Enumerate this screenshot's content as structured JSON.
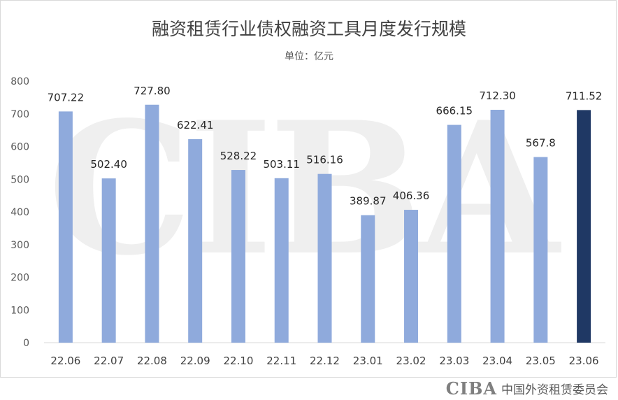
{
  "chart_data": {
    "type": "bar",
    "title": "融资租赁行业债权融资工具月度发行规模",
    "subtitle": "单位：亿元",
    "categories": [
      "22.06",
      "22.07",
      "22.08",
      "22.09",
      "22.10",
      "22.11",
      "22.12",
      "23.01",
      "23.02",
      "23.03",
      "23.04",
      "23.05",
      "23.06"
    ],
    "values": [
      707.22,
      502.4,
      727.8,
      622.41,
      528.22,
      503.11,
      516.16,
      389.87,
      406.36,
      666.15,
      712.3,
      567.8,
      711.52
    ],
    "value_labels": [
      "707.22",
      "502.40",
      "727.80",
      "622.41",
      "528.22",
      "503.11",
      "516.16",
      "389.87",
      "406.36",
      "666.15",
      "712.30",
      "567.8",
      "711.52"
    ],
    "ylim": [
      0,
      800
    ],
    "yticks": [
      0,
      100,
      200,
      300,
      400,
      500,
      600,
      700,
      800
    ],
    "grid": false,
    "colors": {
      "bar": "#8faadc",
      "highlight": "#1f3864"
    },
    "highlight_index": 12
  },
  "footer": {
    "logo": "CIBA",
    "org": "中国外资租赁委员会"
  }
}
